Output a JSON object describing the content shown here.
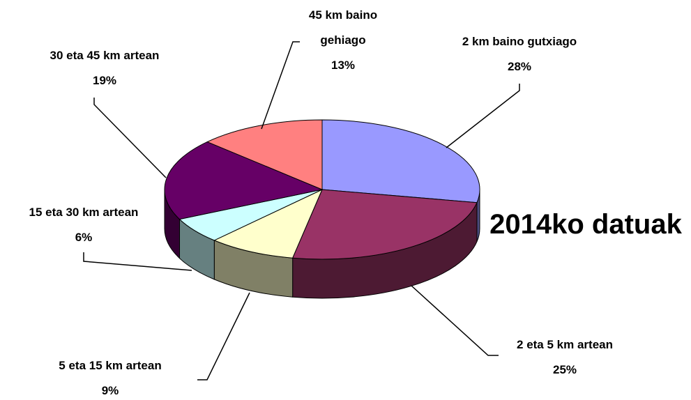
{
  "chart_data": {
    "type": "pie",
    "title": "2014ko datuak",
    "categories": [
      "2 km baino gutxiago",
      "2 eta 5 km artean",
      "5 eta 15 km artean",
      "15 eta 30 km artean",
      "30 eta 45 km artean",
      "45 km baino gehiago"
    ],
    "values": [
      28,
      25,
      9,
      6,
      19,
      13
    ],
    "value_labels": [
      "28%",
      "25%",
      "9%",
      "6%",
      "19%",
      "13%"
    ],
    "colors": [
      "#9999ff",
      "#993366",
      "#ffffcc",
      "#ccffff",
      "#660066",
      "#ff8080"
    ]
  }
}
